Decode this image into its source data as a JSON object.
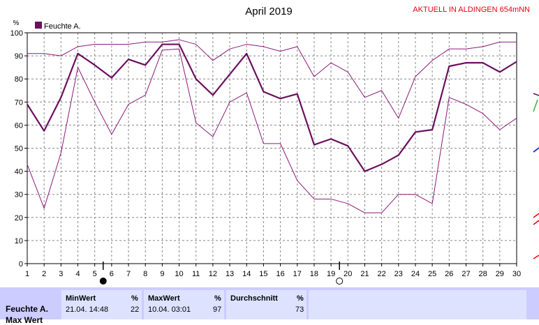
{
  "chart_data": {
    "type": "line",
    "title": "April 2019",
    "station_label": "AKTUELL IN ALDINGEN 654mNN",
    "unit": "%",
    "x": [
      1,
      2,
      3,
      4,
      5,
      6,
      7,
      8,
      9,
      10,
      11,
      12,
      13,
      14,
      15,
      16,
      17,
      18,
      19,
      20,
      21,
      22,
      23,
      24,
      25,
      26,
      27,
      28,
      29,
      30
    ],
    "xlim": [
      1,
      30
    ],
    "ylim": [
      0,
      100
    ],
    "yticks": [
      0,
      10,
      20,
      30,
      40,
      50,
      60,
      70,
      80,
      90,
      100
    ],
    "grid": true,
    "legend_position": "top-left",
    "series": [
      {
        "name": "Feuchte A.",
        "role": "mean",
        "values": [
          69,
          57.5,
          72,
          91,
          86,
          80.5,
          88.5,
          86,
          95,
          95,
          80,
          73,
          82,
          91,
          74.5,
          71.5,
          73.5,
          51.5,
          54,
          51,
          40,
          43,
          47,
          57,
          58,
          85.5,
          87,
          87,
          83,
          87.5
        ]
      },
      {
        "role": "max",
        "values": [
          91,
          91,
          90,
          94,
          95,
          95,
          95,
          96,
          96,
          97,
          95,
          88,
          93,
          95,
          94,
          92,
          94,
          81,
          87,
          83,
          72,
          75,
          63,
          81,
          88,
          93,
          93,
          94,
          96,
          96
        ]
      },
      {
        "role": "min",
        "values": [
          43,
          24,
          48,
          85,
          70,
          56,
          69,
          73,
          92.5,
          93,
          61,
          55,
          70,
          74,
          52,
          52,
          36,
          28,
          28,
          26,
          22,
          22,
          30,
          30,
          26,
          72,
          69,
          65,
          58,
          63
        ]
      }
    ],
    "colors": {
      "mean": "#6b0f5e",
      "range": "#8a1a78",
      "grid": "#888888",
      "axis": "#000000",
      "station_label": "#e8000f"
    },
    "moon_phases": [
      {
        "day": 5.5,
        "phase": "new"
      },
      {
        "day": 19.5,
        "phase": "full"
      }
    ]
  },
  "stats": {
    "row_label": "Feuchte A.",
    "second_row_label_partial": "Max Wert",
    "min": {
      "header": "MinWert",
      "unit": "%",
      "timestamp": "21.04.  14:48",
      "value": "22"
    },
    "max": {
      "header": "MaxWert",
      "unit": "%",
      "timestamp": "10.04.  03:01",
      "value": "97"
    },
    "avg": {
      "header": "Durchschnitt",
      "unit": "%",
      "value": "73"
    }
  }
}
